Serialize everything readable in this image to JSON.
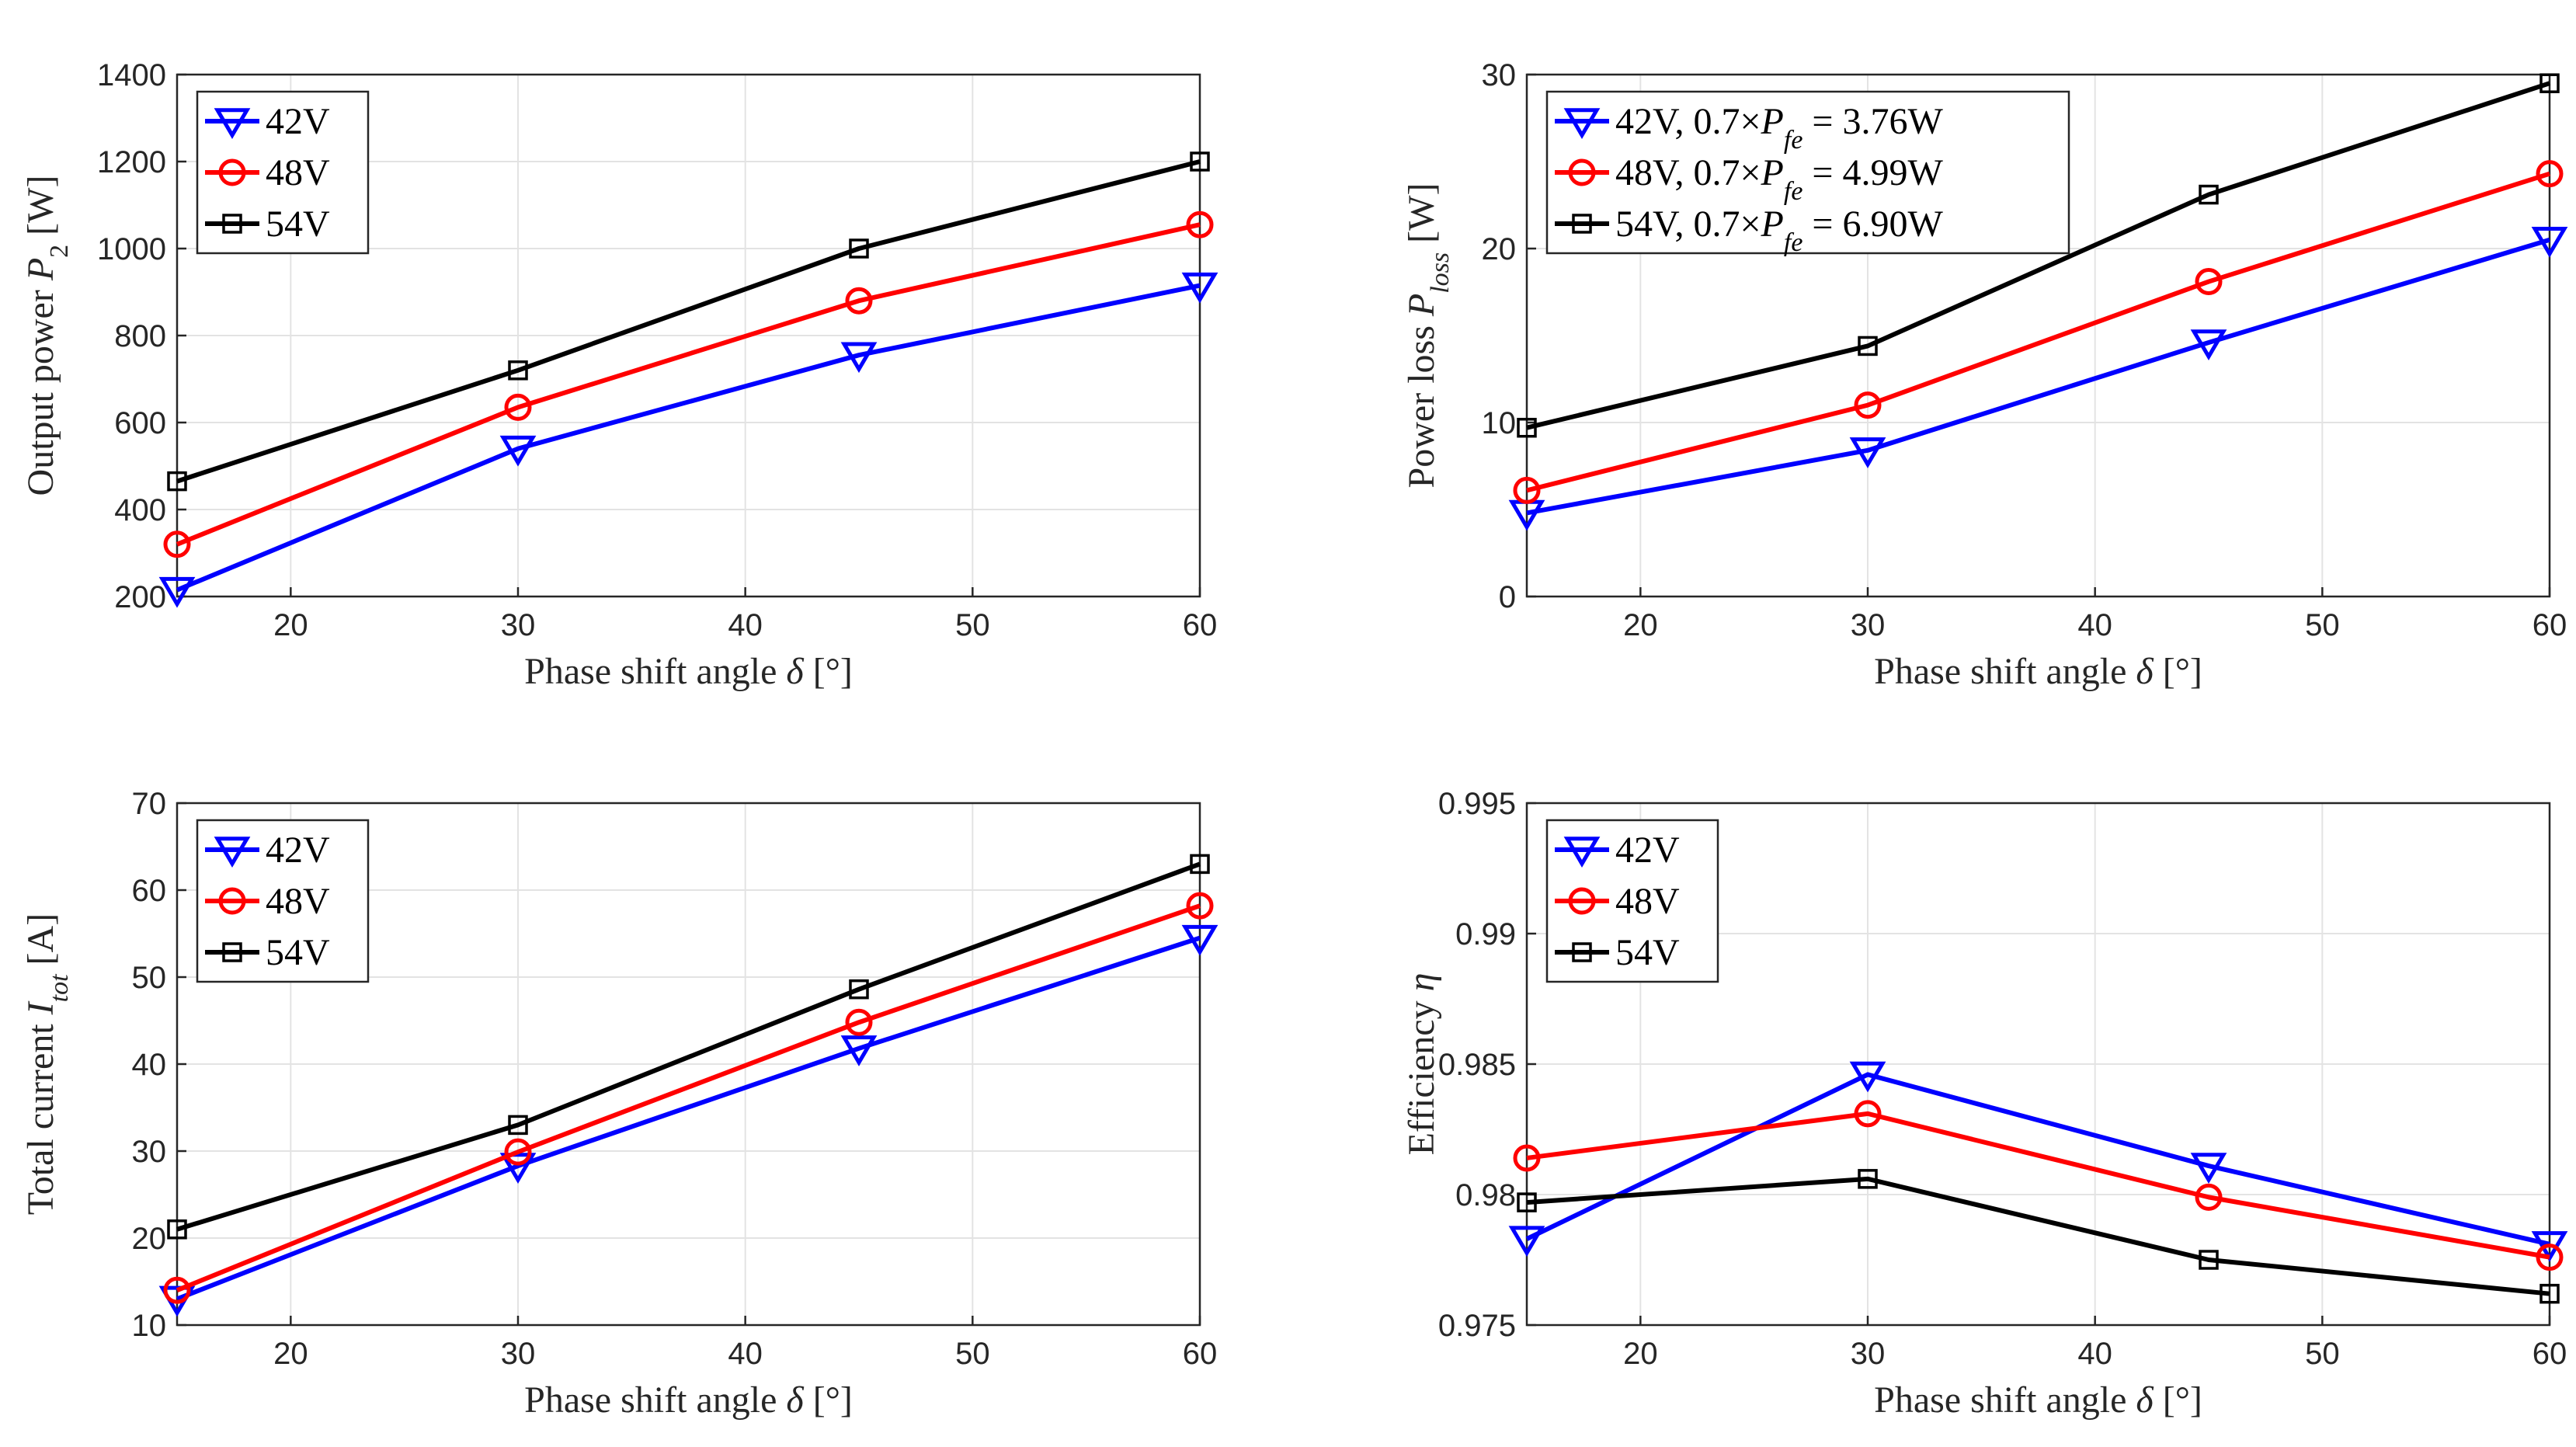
{
  "chart_data": [
    {
      "type": "line",
      "title": "",
      "xlabel": "Phase shift angle δ [°]",
      "ylabel": "Output power P₂ [W]",
      "x": [
        15,
        30,
        45,
        60
      ],
      "xlim": [
        15,
        60
      ],
      "xticks": [
        20,
        30,
        40,
        50,
        60
      ],
      "ylim": [
        200,
        1400
      ],
      "yticks": [
        200,
        400,
        600,
        800,
        1000,
        1200,
        1400
      ],
      "ytick_labels": [
        "200",
        "400",
        "600",
        "800",
        "1000",
        "1200",
        "1400"
      ],
      "grid": true,
      "legend_position": "top-left",
      "series": [
        {
          "name": "42V",
          "color": "#0000ff",
          "marker": "triangle-down",
          "values": [
            215,
            540,
            755,
            915
          ]
        },
        {
          "name": "48V",
          "color": "#ff0000",
          "marker": "circle",
          "values": [
            320,
            635,
            880,
            1055
          ]
        },
        {
          "name": "54V",
          "color": "#000000",
          "marker": "square",
          "values": [
            465,
            720,
            1000,
            1200
          ]
        }
      ]
    },
    {
      "type": "line",
      "title": "",
      "xlabel": "Phase shift angle δ [°]",
      "ylabel": "Power loss P_loss [W]",
      "x": [
        15,
        30,
        45,
        60
      ],
      "xlim": [
        15,
        60
      ],
      "xticks": [
        20,
        30,
        40,
        50,
        60
      ],
      "ylim": [
        0,
        30
      ],
      "yticks": [
        0,
        10,
        20,
        30
      ],
      "ytick_labels": [
        "0",
        "10",
        "20",
        "30"
      ],
      "grid": true,
      "legend_position": "top-left",
      "series": [
        {
          "name": "42V, 0.7×P_fe = 3.76W",
          "color": "#0000ff",
          "marker": "triangle-down",
          "values": [
            4.8,
            8.4,
            14.6,
            20.5
          ]
        },
        {
          "name": "48V, 0.7×P_fe = 4.99W",
          "color": "#ff0000",
          "marker": "circle",
          "values": [
            6.1,
            11.0,
            18.1,
            24.3
          ]
        },
        {
          "name": "54V, 0.7×P_fe = 6.90W",
          "color": "#000000",
          "marker": "square",
          "values": [
            9.7,
            14.4,
            23.1,
            29.5
          ]
        }
      ]
    },
    {
      "type": "line",
      "title": "",
      "xlabel": "Phase shift angle δ [°]",
      "ylabel": "Total current I_tot [A]",
      "x": [
        15,
        30,
        45,
        60
      ],
      "xlim": [
        15,
        60
      ],
      "xticks": [
        20,
        30,
        40,
        50,
        60
      ],
      "ylim": [
        10,
        70
      ],
      "yticks": [
        10,
        20,
        30,
        40,
        50,
        60,
        70
      ],
      "ytick_labels": [
        "10",
        "20",
        "30",
        "40",
        "50",
        "60",
        "70"
      ],
      "grid": true,
      "legend_position": "top-left",
      "series": [
        {
          "name": "42V",
          "color": "#0000ff",
          "marker": "triangle-down",
          "values": [
            13.0,
            28.3,
            41.8,
            54.5
          ]
        },
        {
          "name": "48V",
          "color": "#ff0000",
          "marker": "circle",
          "values": [
            14.0,
            29.9,
            44.8,
            58.2
          ]
        },
        {
          "name": "54V",
          "color": "#000000",
          "marker": "square",
          "values": [
            21.0,
            33.0,
            48.6,
            63.0
          ]
        }
      ]
    },
    {
      "type": "line",
      "title": "",
      "xlabel": "Phase shift angle δ [°]",
      "ylabel": "Efficiency η",
      "x": [
        15,
        30,
        45,
        60
      ],
      "xlim": [
        15,
        60
      ],
      "xticks": [
        20,
        30,
        40,
        50,
        60
      ],
      "ylim": [
        0.975,
        0.995
      ],
      "yticks": [
        0.975,
        0.98,
        0.985,
        0.99,
        0.995
      ],
      "ytick_labels": [
        "0.975",
        "0.98",
        "0.985",
        "0.99",
        "0.995"
      ],
      "grid": true,
      "legend_position": "top-left",
      "series": [
        {
          "name": "42V",
          "color": "#0000ff",
          "marker": "triangle-down",
          "values": [
            0.9783,
            0.9846,
            0.9811,
            0.9781
          ]
        },
        {
          "name": "48V",
          "color": "#ff0000",
          "marker": "circle",
          "values": [
            0.9814,
            0.9831,
            0.9799,
            0.9776
          ]
        },
        {
          "name": "54V",
          "color": "#000000",
          "marker": "square",
          "values": [
            0.9797,
            0.9806,
            0.9775,
            0.9762
          ]
        }
      ]
    }
  ]
}
